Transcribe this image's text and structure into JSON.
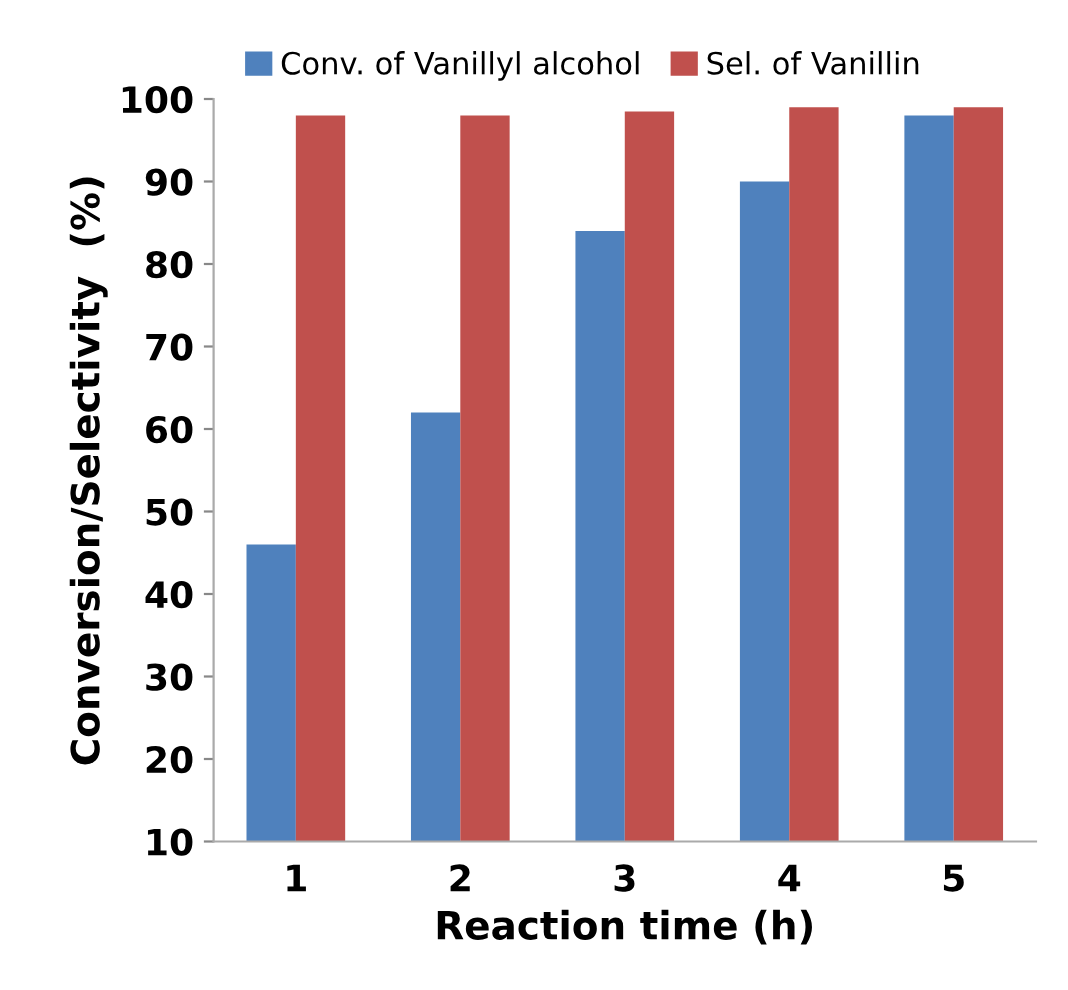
{
  "chart_data": {
    "type": "bar",
    "xlabel": "Reaction time (h)",
    "ylabel": "Conversion/Selectivity  (%)",
    "categories": [
      "1",
      "2",
      "3",
      "4",
      "5"
    ],
    "series": [
      {
        "name": "Conv. of Vanillyl alcohol",
        "color": "#4f81bd",
        "values": [
          46,
          62,
          84,
          90,
          98
        ]
      },
      {
        "name": "Sel. of Vanillin",
        "color": "#c0504d",
        "values": [
          98,
          98,
          98.5,
          99,
          99
        ]
      }
    ],
    "ylim": [
      10,
      100
    ],
    "yticks": [
      10,
      20,
      30,
      40,
      50,
      60,
      70,
      80,
      90,
      100
    ],
    "grid": false,
    "legend": "top"
  }
}
